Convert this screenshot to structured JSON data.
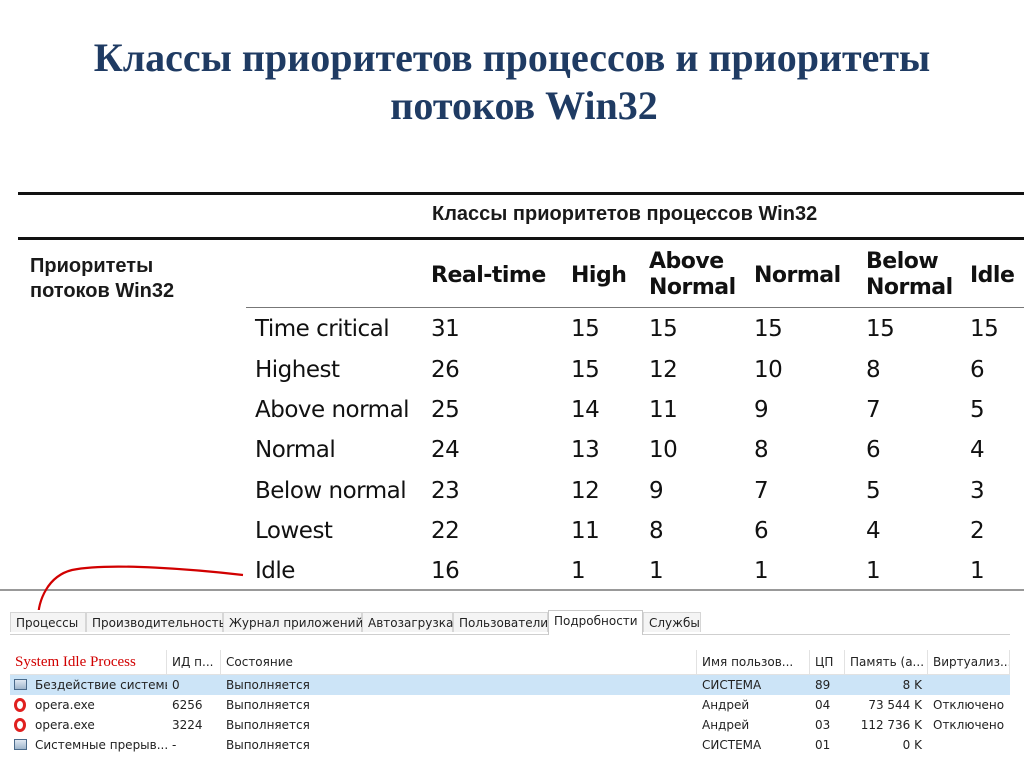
{
  "slide": {
    "title_line_1": "Классы приоритетов процессов и приоритеты",
    "title_line_2": "потоков Win32"
  },
  "priority_table": {
    "group_header": "Классы приоритетов процессов Win32",
    "row_header_line_1": "Приоритеты",
    "row_header_line_2": "потоков Win32",
    "columns": [
      [
        "Real-time",
        ""
      ],
      [
        "High",
        ""
      ],
      [
        "Above",
        "Normal"
      ],
      [
        "Normal",
        ""
      ],
      [
        "Below",
        "Normal"
      ],
      [
        "Idle",
        ""
      ]
    ],
    "rows": [
      {
        "label": "Time critical",
        "values": [
          "31",
          "15",
          "15",
          "15",
          "15",
          "15"
        ]
      },
      {
        "label": "Highest",
        "values": [
          "26",
          "15",
          "12",
          "10",
          "8",
          "6"
        ]
      },
      {
        "label": "Above normal",
        "values": [
          "25",
          "14",
          "11",
          "9",
          "7",
          "5"
        ]
      },
      {
        "label": "Normal",
        "values": [
          "24",
          "13",
          "10",
          "8",
          "6",
          "4"
        ]
      },
      {
        "label": "Below normal",
        "values": [
          "23",
          "12",
          "9",
          "7",
          "5",
          "3"
        ]
      },
      {
        "label": "Lowest",
        "values": [
          "22",
          "11",
          "8",
          "6",
          "4",
          "2"
        ]
      },
      {
        "label": "Idle",
        "values": [
          "16",
          "1",
          "1",
          "1",
          "1",
          "1"
        ]
      }
    ]
  },
  "annotation": {
    "label": "System Idle Process",
    "color": "#d10000"
  },
  "task_manager": {
    "tabs": [
      "Процессы",
      "Производительность",
      "Журнал приложений",
      "Автозагрузка",
      "Пользователи",
      "Подробности",
      "Службы"
    ],
    "active_tab": "Подробности",
    "columns": [
      "ИД п...",
      "Состояние",
      "Имя пользов...",
      "ЦП",
      "Память (а...",
      "Виртуализ..."
    ],
    "rows": [
      {
        "icon": "system-window-icon",
        "name": "Бездействие системы",
        "pid": "0",
        "state": "Выполняется",
        "user": "СИСТЕМА",
        "cpu": "89",
        "memory": "8 K",
        "virt": "",
        "selected": true
      },
      {
        "icon": "opera-icon",
        "name": "opera.exe",
        "pid": "6256",
        "state": "Выполняется",
        "user": "Андрей",
        "cpu": "04",
        "memory": "73 544 K",
        "virt": "Отключено",
        "selected": false
      },
      {
        "icon": "opera-icon",
        "name": "opera.exe",
        "pid": "3224",
        "state": "Выполняется",
        "user": "Андрей",
        "cpu": "03",
        "memory": "112 736 K",
        "virt": "Отключено",
        "selected": false
      },
      {
        "icon": "system-window-icon",
        "name": "Системные прерыв...",
        "pid": "-",
        "state": "Выполняется",
        "user": "СИСТЕМА",
        "cpu": "01",
        "memory": "0 K",
        "virt": "",
        "selected": false
      }
    ]
  },
  "colors": {
    "title": "#1f3b63",
    "selected_row": "#cce4f7",
    "opera_red": "#e0201f"
  }
}
